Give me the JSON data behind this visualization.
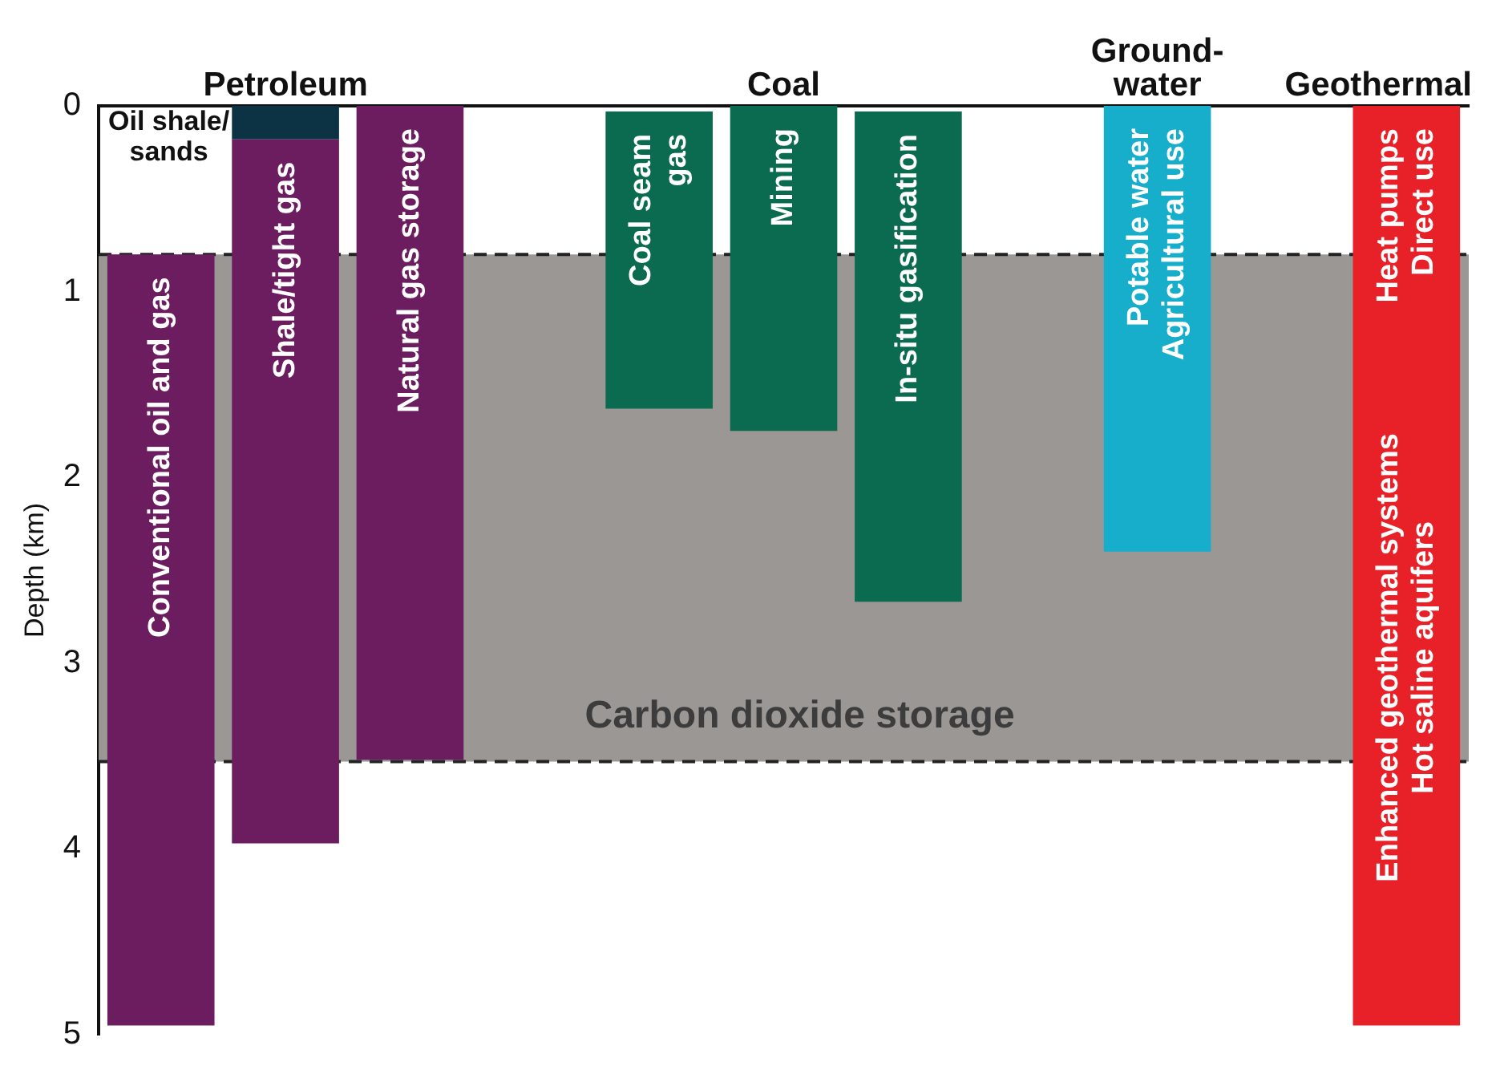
{
  "chart_data": {
    "type": "bar",
    "ylabel": "Depth (km)",
    "categories": [
      "Conventional oil and gas",
      "Shale/tight gas",
      "Natural gas storage",
      null,
      "Coal seam\ngas",
      "Mining",
      "In-situ gasification",
      null,
      "Potable water\nAgricultural use",
      null,
      "Heat pumps\nDirect use"
    ],
    "series": [
      {
        "values": [
          4.15,
          3.79,
          3.52,
          null,
          1.6,
          1.75,
          2.64,
          null,
          2.4,
          null,
          4.95
        ],
        "base": [
          0.8,
          0.18,
          0,
          null,
          0.03,
          0,
          0.03,
          null,
          0,
          null,
          0
        ],
        "colors": [
          "#6b1d60",
          "#6b1d60",
          "#6b1d60",
          "#6b1d60",
          "#0b6b50",
          "#0b6b50",
          "#0b6b50",
          "#0b6b50",
          "#16aecb",
          "#16aecb",
          "#e82128"
        ]
      },
      {
        "name": "Oil shale/sands",
        "values": [
          null,
          0.18,
          null,
          null,
          null,
          null,
          null,
          null,
          null,
          null,
          null
        ],
        "base": [
          null,
          0,
          null,
          null,
          null,
          null,
          null,
          null,
          null,
          null,
          null
        ],
        "color": "#0b3344"
      }
    ],
    "ylim": [
      5,
      0
    ],
    "yticks": [
      0,
      1,
      2,
      3,
      4,
      5
    ],
    "grid": false,
    "tick_labels": "y",
    "bands": [
      {
        "axis": "y",
        "from": 0.8,
        "to": 3.53,
        "label": "Carbon dioxide storage",
        "color": "#9b9795"
      }
    ],
    "ref_lines": [
      {
        "axis": "y",
        "value": 0.8,
        "color": "#222222",
        "line_style": "dashed"
      },
      {
        "axis": "y",
        "value": 3.53,
        "color": "#222222",
        "line_style": "dashed"
      }
    ],
    "annotations": [
      "Petroleum",
      "Coal",
      "Ground-\nwater",
      "Geothermal",
      "Enhanced geothermal systems\nHot saline aquifers"
    ]
  }
}
